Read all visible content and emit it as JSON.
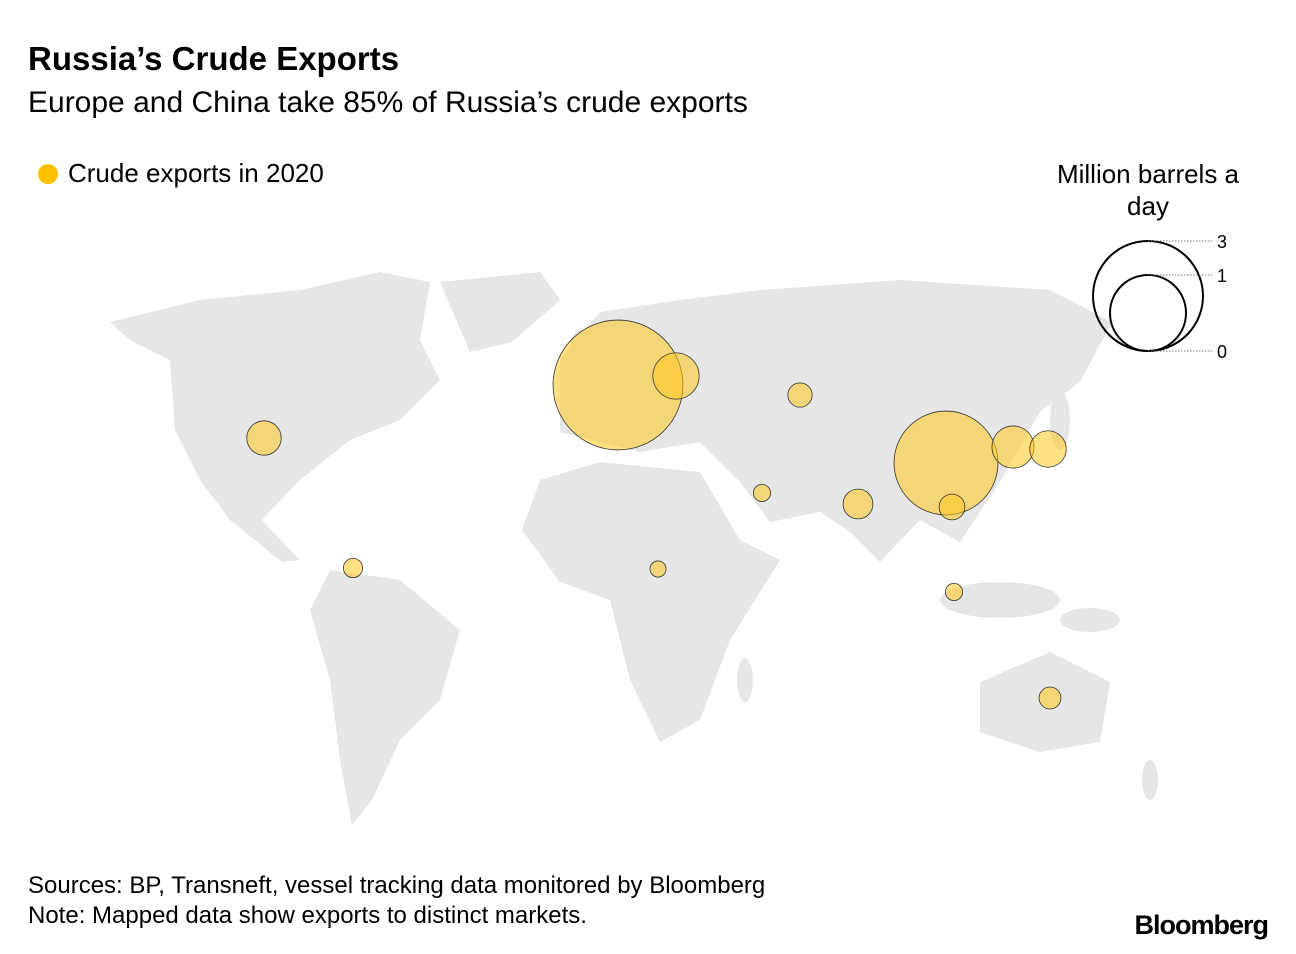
{
  "header": {
    "title": "Russia’s Crude Exports",
    "subtitle": "Europe and China take 85% of Russia’s crude exports"
  },
  "legend": {
    "series_label": "Crude exports in 2020",
    "series_color": "#ffc100",
    "size_title": "Million barrels a day",
    "size_ticks": [
      "3",
      "1",
      "0"
    ]
  },
  "chart_data": {
    "type": "bubble-map",
    "unit": "Million barrels a day",
    "series": "Crude exports in 2020",
    "values": [
      2.28,
      0.29,
      0.08,
      0.16,
      0.05,
      0.04,
      0.12,
      0.035,
      1.46,
      0.24,
      0.18,
      0.09,
      0.04,
      0.065
    ]
  },
  "footer": {
    "sources": "Sources: BP, Transneft, vessel tracking data monitored by Bloomberg",
    "note": "Note: Mapped data show exports to distinct markets.",
    "brand": "Bloomberg"
  }
}
